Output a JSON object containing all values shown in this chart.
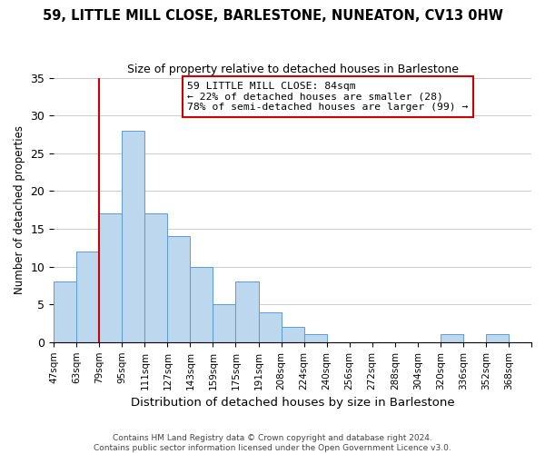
{
  "title": "59, LITTLE MILL CLOSE, BARLESTONE, NUNEATON, CV13 0HW",
  "subtitle": "Size of property relative to detached houses in Barlestone",
  "xlabel": "Distribution of detached houses by size in Barlestone",
  "ylabel": "Number of detached properties",
  "bar_color": "#bdd7ee",
  "bar_edge_color": "#5b9bd5",
  "bins": [
    "47sqm",
    "63sqm",
    "79sqm",
    "95sqm",
    "111sqm",
    "127sqm",
    "143sqm",
    "159sqm",
    "175sqm",
    "191sqm",
    "208sqm",
    "224sqm",
    "240sqm",
    "256sqm",
    "272sqm",
    "288sqm",
    "304sqm",
    "320sqm",
    "336sqm",
    "352sqm",
    "368sqm"
  ],
  "values": [
    8,
    12,
    17,
    28,
    17,
    14,
    10,
    5,
    8,
    4,
    2,
    1,
    0,
    0,
    0,
    0,
    0,
    1,
    0,
    1,
    0
  ],
  "vline_x": 2,
  "vline_color": "#cc0000",
  "annotation_title": "59 LITTLE MILL CLOSE: 84sqm",
  "annotation_line1": "← 22% of detached houses are smaller (28)",
  "annotation_line2": "78% of semi-detached houses are larger (99) →",
  "ylim": [
    0,
    35
  ],
  "yticks": [
    0,
    5,
    10,
    15,
    20,
    25,
    30,
    35
  ],
  "footer1": "Contains HM Land Registry data © Crown copyright and database right 2024.",
  "footer2": "Contains public sector information licensed under the Open Government Licence v3.0."
}
